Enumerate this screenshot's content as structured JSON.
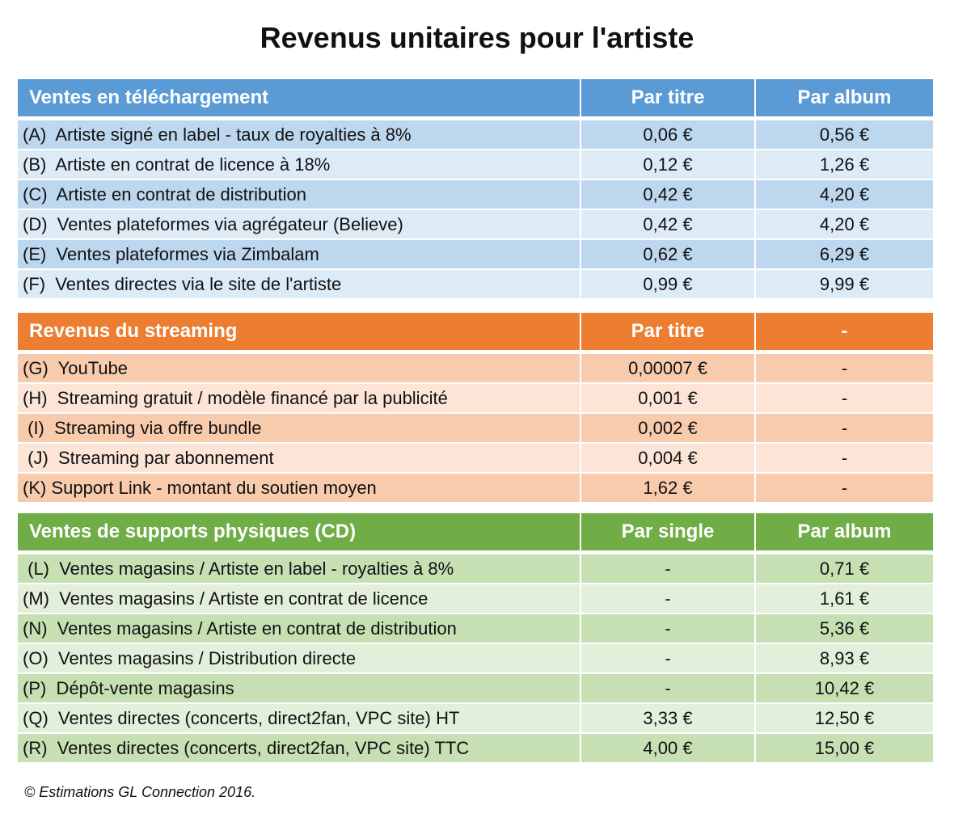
{
  "title": "Revenus unitaires pour l'artiste",
  "sections": [
    {
      "id": "download",
      "header": [
        "Ventes en téléchargement",
        "Par titre",
        "Par album"
      ],
      "colors": {
        "header": "#5b9bd5",
        "dark": "#bdd7ee",
        "light": "#ddebf7"
      },
      "rows": [
        [
          "(A)  Artiste signé en label - taux de royalties à 8%",
          "0,06 €",
          "0,56 €"
        ],
        [
          "(B)  Artiste en contrat de licence à 18%",
          "0,12 €",
          "1,26 €"
        ],
        [
          "(C)  Artiste en contrat de distribution",
          "0,42 €",
          "4,20 €"
        ],
        [
          "(D)  Ventes plateformes via agrégateur (Believe)",
          "0,42 €",
          "4,20 €"
        ],
        [
          "(E)  Ventes plateformes via Zimbalam",
          "0,62 €",
          "6,29 €"
        ],
        [
          "(F)  Ventes directes via le site de l'artiste",
          "0,99 €",
          "9,99 €"
        ]
      ]
    },
    {
      "id": "streaming",
      "header": [
        "Revenus du streaming",
        "Par titre",
        "-"
      ],
      "colors": {
        "header": "#ed7d31",
        "dark": "#f8cbad",
        "light": "#fce4d6"
      },
      "rows": [
        [
          "(G)  YouTube",
          "0,00007 €",
          "-"
        ],
        [
          "(H)  Streaming gratuit / modèle financé par la publicité",
          "0,001 €",
          "-"
        ],
        [
          " (I)  Streaming via offre bundle",
          "0,002 €",
          "-"
        ],
        [
          " (J)  Streaming par abonnement",
          "0,004 €",
          "-"
        ],
        [
          "(K) Support Link - montant du soutien moyen",
          "1,62 €",
          "-"
        ]
      ]
    },
    {
      "id": "physical",
      "header": [
        "Ventes de supports physiques (CD)",
        "Par single",
        "Par album"
      ],
      "colors": {
        "header": "#70ad47",
        "dark": "#c6e0b4",
        "light": "#e2efda"
      },
      "rows": [
        [
          " (L)  Ventes magasins / Artiste en label - royalties à 8%",
          "-",
          "0,71 €"
        ],
        [
          "(M)  Ventes magasins / Artiste en contrat de licence",
          "-",
          "1,61 €"
        ],
        [
          "(N)  Ventes magasins / Artiste en contrat de distribution",
          "-",
          "5,36 €"
        ],
        [
          "(O)  Ventes magasins / Distribution directe",
          "-",
          "8,93 €"
        ],
        [
          "(P)  Dépôt-vente magasins",
          "-",
          "10,42 €"
        ],
        [
          "(Q)  Ventes directes (concerts, direct2fan, VPC site) HT",
          "3,33 €",
          "12,50 €"
        ],
        [
          "(R)  Ventes directes (concerts, direct2fan, VPC site) TTC",
          "4,00 €",
          "15,00 €"
        ]
      ]
    }
  ],
  "footer": "© Estimations GL Connection 2016."
}
